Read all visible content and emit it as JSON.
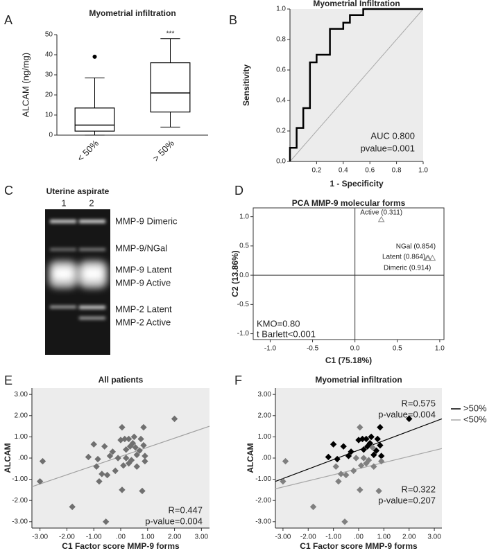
{
  "chart_data": [
    {
      "panel": "A",
      "type": "box",
      "title": "Myometrial infiltration",
      "ylabel": "ALCAM (ng/mg)",
      "categories": [
        "< 50%",
        "> 50%"
      ],
      "whisker_low": [
        0,
        4
      ],
      "q1": [
        2,
        11.5
      ],
      "median": [
        5,
        21
      ],
      "q3": [
        13.5,
        36
      ],
      "whisker_high": [
        28.5,
        48
      ],
      "outliers": [
        [
          39
        ],
        []
      ],
      "annotations": [
        "***"
      ],
      "ylim": [
        0,
        50
      ],
      "yticks": [
        0,
        10,
        20,
        30,
        40,
        50
      ],
      "color": "#000000"
    },
    {
      "panel": "B",
      "type": "line",
      "title": "Myometrial Infiltration",
      "xlabel": "1 - Specificity",
      "ylabel": "Sensitivity",
      "x": [
        0,
        0,
        0.05,
        0.05,
        0.1,
        0.1,
        0.15,
        0.15,
        0.2,
        0.2,
        0.3,
        0.3,
        0.4,
        0.4,
        0.45,
        0.45,
        0.55,
        0.55,
        1
      ],
      "y": [
        0,
        0.09,
        0.09,
        0.22,
        0.22,
        0.35,
        0.35,
        0.65,
        0.65,
        0.7,
        0.7,
        0.87,
        0.87,
        0.91,
        0.91,
        0.96,
        0.96,
        1,
        1
      ],
      "color": "#000000",
      "xlim": [
        0,
        1
      ],
      "ylim": [
        0,
        1
      ],
      "xticks": [
        0.2,
        0.4,
        0.6,
        0.8,
        {
          "value": 1,
          "label": "1.0"
        }
      ],
      "yticks": [
        {
          "value": 0,
          "label": "0.0"
        },
        0.2,
        0.4,
        0.6,
        0.8,
        {
          "value": 1,
          "label": "1.0"
        }
      ],
      "annotations": [
        "AUC 0.800",
        "pvalue=0.001"
      ]
    },
    {
      "panel": "D",
      "type": "scatter",
      "marker": "triangle",
      "title": "PCA MMP-9 molecular forms",
      "xlabel": "C1 (75.18%)",
      "ylabel": "C2 (13.86%)",
      "x": [
        0.311,
        0.854,
        0.864,
        0.914
      ],
      "y": [
        0.95,
        0.29,
        0.29,
        0.29
      ],
      "labels": [
        "Active (0.311)",
        "NGal (0.854)",
        "Latent (0.864)",
        "Dimeric (0.914)"
      ],
      "color": "#888888",
      "xlim": [
        -1.2,
        1.05
      ],
      "ylim": [
        -1.1,
        1.15
      ],
      "xticks": [
        {
          "value": -1,
          "label": "-1.0"
        },
        -0.5,
        {
          "value": 0,
          "label": "0.0"
        },
        0.5,
        {
          "value": 1,
          "label": "1.0"
        }
      ],
      "yticks": [
        {
          "value": -1,
          "label": "-1.0"
        },
        -0.5,
        {
          "value": 0,
          "label": "0.0"
        },
        0.5,
        {
          "value": 1,
          "label": "1.0"
        }
      ],
      "annotations": [
        "KMO=0.80",
        "t Barlett<0.001"
      ]
    },
    {
      "panel": "E",
      "type": "scatter",
      "marker": "diamond",
      "title": "All patients",
      "xlabel": "C1 Factor score MMP-9 forms",
      "ylabel": "ALCAM",
      "x": [
        -1.2,
        -1.0,
        -0.85,
        -0.6,
        -0.4,
        -0.3,
        0.0,
        0.15,
        0.2,
        0.3,
        0.35,
        0.45,
        0.5,
        0.6,
        0.7,
        0.75,
        0.85,
        0.85,
        0.9,
        2.0,
        -3.0,
        -2.9,
        -1.8,
        -0.9,
        -0.8,
        -0.7,
        -0.55,
        -0.5,
        -0.2,
        -0.1,
        0.05,
        0.1,
        0.2,
        0.3,
        0.4,
        0.55,
        0.6,
        0.8,
        0.9,
        0.05
      ],
      "y": [
        0.05,
        0.65,
        -0.05,
        0.55,
        0.1,
        0.3,
        0.85,
        0.9,
        0.4,
        0.9,
        0.55,
        0.7,
        1.0,
        0.15,
        0.35,
        0.9,
        0.6,
        1.45,
        0.1,
        1.85,
        -1.1,
        -0.15,
        -2.3,
        -0.4,
        -1.1,
        -0.75,
        -3.0,
        -0.8,
        -0.6,
        0.0,
        1.45,
        -0.35,
        0.0,
        -0.25,
        -0.1,
        0.5,
        -0.4,
        -1.55,
        -0.15,
        -1.5
      ],
      "color": "#707070",
      "fit": {
        "x": [
          -3.3,
          3.3
        ],
        "y": [
          -1.35,
          1.5
        ],
        "color": "#a0a0a0"
      },
      "xlim": [
        -3.3,
        3.3
      ],
      "ylim": [
        -3.3,
        3.3
      ],
      "xticks": [
        {
          "value": -3,
          "label": "-3.00"
        },
        {
          "value": -2,
          "label": "-2.00"
        },
        {
          "value": -1,
          "label": "-1.00"
        },
        {
          "value": 0,
          "label": ".00"
        },
        {
          "value": 1,
          "label": "1.00"
        },
        {
          "value": 2,
          "label": "2.00"
        },
        {
          "value": 3,
          "label": "3.00"
        }
      ],
      "yticks": [
        {
          "value": -3,
          "label": "-3.00"
        },
        {
          "value": -2,
          "label": "-2.00"
        },
        {
          "value": -1,
          "label": "-1.00"
        },
        {
          "value": 0,
          "label": ".00"
        },
        {
          "value": 1,
          "label": "1.00"
        },
        {
          "value": 2,
          "label": "2.00"
        },
        {
          "value": 3,
          "label": "3.00"
        }
      ],
      "annotations": [
        "R=0.447",
        "p-value=0.004"
      ]
    },
    {
      "panel": "F",
      "type": "scatter",
      "marker": "diamond",
      "title": "Myometrial infiltration",
      "xlabel": "C1 Factor score MMP-9 forms",
      "ylabel": "ALCAM",
      "series": [
        {
          "name": ">50%",
          "color": "#000000",
          "x": [
            -1.2,
            -1.0,
            -0.85,
            -0.6,
            -0.4,
            -0.3,
            0.0,
            0.15,
            0.2,
            0.3,
            0.35,
            0.45,
            0.5,
            0.6,
            0.7,
            0.75,
            0.85,
            0.85,
            0.9,
            2.0
          ],
          "y": [
            0.05,
            0.65,
            -0.05,
            0.55,
            0.1,
            0.3,
            0.85,
            0.9,
            0.4,
            0.9,
            0.55,
            0.7,
            1.0,
            0.15,
            0.35,
            0.9,
            0.6,
            1.45,
            0.1,
            1.85
          ],
          "fit": {
            "x": [
              -3.3,
              3.3
            ],
            "y": [
              -1.1,
              1.85
            ],
            "color": "#000000"
          }
        },
        {
          "name": "<50%",
          "color": "#808080",
          "x": [
            -3.0,
            -2.9,
            -1.8,
            -0.9,
            -0.8,
            -0.7,
            -0.55,
            -0.5,
            -0.2,
            -0.1,
            0.05,
            0.1,
            0.2,
            0.3,
            0.4,
            0.55,
            0.6,
            0.8,
            0.9,
            0.05
          ],
          "y": [
            -1.1,
            -0.15,
            -2.3,
            -0.4,
            -1.1,
            -0.75,
            -3.0,
            -0.8,
            -0.6,
            0.0,
            1.45,
            -0.35,
            0.0,
            -0.25,
            -0.1,
            0.5,
            -0.4,
            -1.55,
            -0.15,
            -1.5
          ],
          "fit": {
            "x": [
              -3.3,
              3.3
            ],
            "y": [
              -1.45,
              0.45
            ],
            "color": "#a8a8a8"
          }
        }
      ],
      "xlim": [
        -3.3,
        3.3
      ],
      "ylim": [
        -3.3,
        3.3
      ],
      "xticks": [
        {
          "value": -3,
          "label": "-3.00"
        },
        {
          "value": -2,
          "label": "-2.00"
        },
        {
          "value": -1,
          "label": "-1.00"
        },
        {
          "value": 0,
          "label": ".00"
        },
        {
          "value": 1,
          "label": "1.00"
        },
        {
          "value": 2,
          "label": "2.00"
        },
        {
          "value": 3,
          "label": "3.00"
        }
      ],
      "yticks": [
        {
          "value": -3,
          "label": "-3.00"
        },
        {
          "value": -2,
          "label": "-2.00"
        },
        {
          "value": -1,
          "label": "-1.00"
        },
        {
          "value": 0,
          "label": ".00"
        },
        {
          "value": 1,
          "label": "1.00"
        },
        {
          "value": 2,
          "label": "2.00"
        },
        {
          "value": 3,
          "label": "3.00"
        }
      ],
      "annotations": [
        "R=0.575",
        "p-value=0.004",
        "R=0.322",
        "p-value=0.207"
      ]
    }
  ],
  "gel": {
    "panel": "C",
    "title": "Uterine aspirate",
    "lanes": [
      "1",
      "2"
    ],
    "bands": [
      "MMP-9 Dimeric",
      "MMP-9/NGal",
      "MMP-9 Latent",
      "MMP-9 Active",
      "MMP-2 Latent",
      "MMP-2 Active"
    ]
  }
}
